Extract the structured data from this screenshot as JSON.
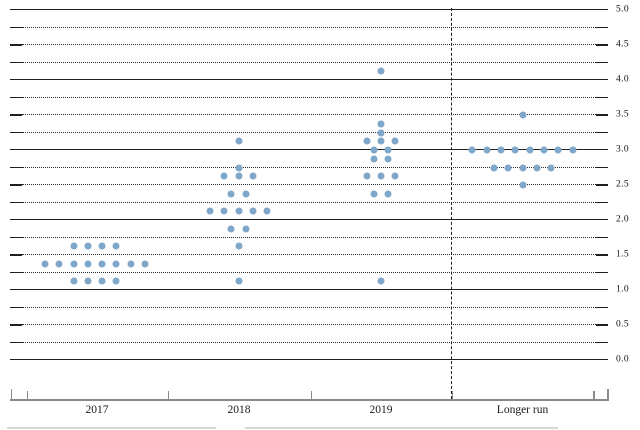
{
  "chart_data": {
    "type": "scatter",
    "subtype": "fomc-dot-plot",
    "categories": [
      "2017",
      "2018",
      "2019",
      "Longer run"
    ],
    "y_axis": {
      "min": 0.0,
      "max": 5.0,
      "tick_labels": [
        "5.0",
        "4.5",
        "4.0",
        "3.5",
        "3.0",
        "2.5",
        "2.0",
        "1.5",
        "1.0",
        "0.5",
        "0.0"
      ],
      "label_step": 0.5,
      "gridline_step": 0.25,
      "solid_gridlines_at": [
        0,
        1,
        2,
        3,
        4,
        5
      ],
      "grid": "dotted quarter-point rules with solid rules at whole percents"
    },
    "legend": null,
    "columns": [
      {
        "label": "2017",
        "dots": [
          {
            "value": 1.625,
            "count": 4
          },
          {
            "value": 1.375,
            "count": 8
          },
          {
            "value": 1.125,
            "count": 4
          }
        ]
      },
      {
        "label": "2018",
        "dots": [
          {
            "value": 3.125,
            "count": 1
          },
          {
            "value": 2.75,
            "count": 1
          },
          {
            "value": 2.625,
            "count": 3
          },
          {
            "value": 2.375,
            "count": 2
          },
          {
            "value": 2.125,
            "count": 5
          },
          {
            "value": 1.875,
            "count": 2
          },
          {
            "value": 1.625,
            "count": 1
          },
          {
            "value": 1.125,
            "count": 1
          }
        ]
      },
      {
        "label": "2019",
        "dots": [
          {
            "value": 4.125,
            "count": 1
          },
          {
            "value": 3.375,
            "count": 1
          },
          {
            "value": 3.25,
            "count": 1
          },
          {
            "value": 3.125,
            "count": 3
          },
          {
            "value": 3.0,
            "count": 2
          },
          {
            "value": 2.875,
            "count": 2
          },
          {
            "value": 2.625,
            "count": 3
          },
          {
            "value": 2.375,
            "count": 2
          },
          {
            "value": 1.125,
            "count": 1
          }
        ]
      },
      {
        "label": "Longer run",
        "dots": [
          {
            "value": 3.5,
            "count": 1
          },
          {
            "value": 3.0,
            "count": 8
          },
          {
            "value": 2.75,
            "count": 5
          },
          {
            "value": 2.5,
            "count": 1
          }
        ]
      }
    ],
    "separator": "dashed vertical line between 2019 and Longer run",
    "colors": {
      "dot": "#7fa7ca",
      "gridline": "#1f1f1f",
      "x_axis": "#8a8a8a",
      "background": "#ffffff"
    }
  }
}
